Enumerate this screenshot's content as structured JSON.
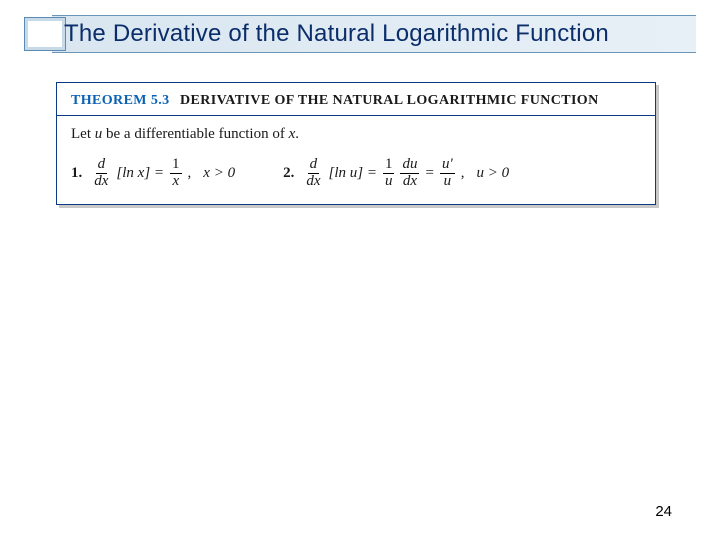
{
  "slide": {
    "title": "The Derivative of the Natural Logarithmic Function",
    "page_number": "24"
  },
  "theorem": {
    "label": "THEOREM 5.3",
    "title": "DERIVATIVE OF THE NATURAL LOGARITHMIC FUNCTION",
    "premise_prefix": "Let ",
    "premise_var": "u",
    "premise_suffix": " be a differentiable function of ",
    "premise_var2": "x",
    "premise_end": ".",
    "formula1": {
      "number": "1.",
      "d": "d",
      "dx": "dx",
      "bracket": "[ln x] =",
      "num": "1",
      "den": "x",
      "comma": ",",
      "cond": "x > 0"
    },
    "formula2": {
      "number": "2.",
      "d": "d",
      "dx": "dx",
      "bracket": "[ln u] =",
      "num1": "1",
      "den1": "u",
      "du": "du",
      "dx2": "dx",
      "eq": "=",
      "num2": "u′",
      "den2": "u",
      "comma": ",",
      "cond": "u > 0"
    }
  },
  "colors": {
    "title_text": "#0b2e6b",
    "title_border": "#5b8bb5",
    "theorem_border": "#0a3a82",
    "theorem_label": "#0b62b3",
    "shadow": "#c8c8c8",
    "bg": "#ffffff"
  }
}
